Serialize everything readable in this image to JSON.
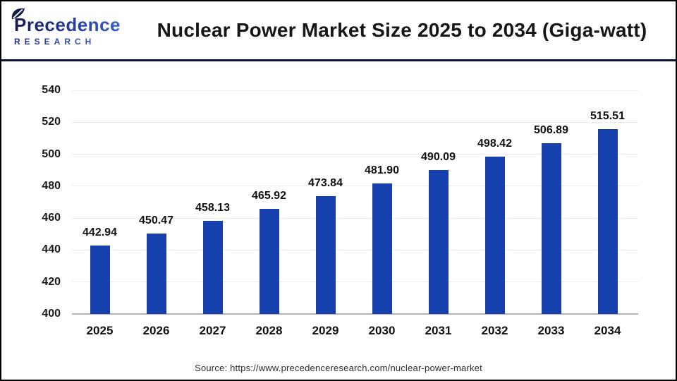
{
  "brand": {
    "name": "Precedence",
    "subtitle": "RESEARCH"
  },
  "chart_data": {
    "type": "bar",
    "title": "Nuclear Power Market Size 2025 to 2034 (Giga-watt)",
    "categories": [
      "2025",
      "2026",
      "2027",
      "2028",
      "2029",
      "2030",
      "2031",
      "2032",
      "2033",
      "2034"
    ],
    "values": [
      442.94,
      450.47,
      458.13,
      465.92,
      473.84,
      481.9,
      490.09,
      498.42,
      506.89,
      515.51
    ],
    "value_labels": [
      "442.94",
      "450.47",
      "458.13",
      "465.92",
      "473.84",
      "481.90",
      "490.09",
      "498.42",
      "506.89",
      "515.51"
    ],
    "ylim": [
      400,
      540
    ],
    "yticks": [
      400,
      420,
      440,
      460,
      480,
      500,
      520,
      540
    ],
    "xlabel": "",
    "ylabel": "",
    "grid": true,
    "legend": "none",
    "bar_color": "#1540ae",
    "gridline_color": "#ededed",
    "axis_color": "#b3b3b3"
  },
  "footer": {
    "source": "Source: https://www.precedenceresearch.com/nuclear-power-market"
  }
}
